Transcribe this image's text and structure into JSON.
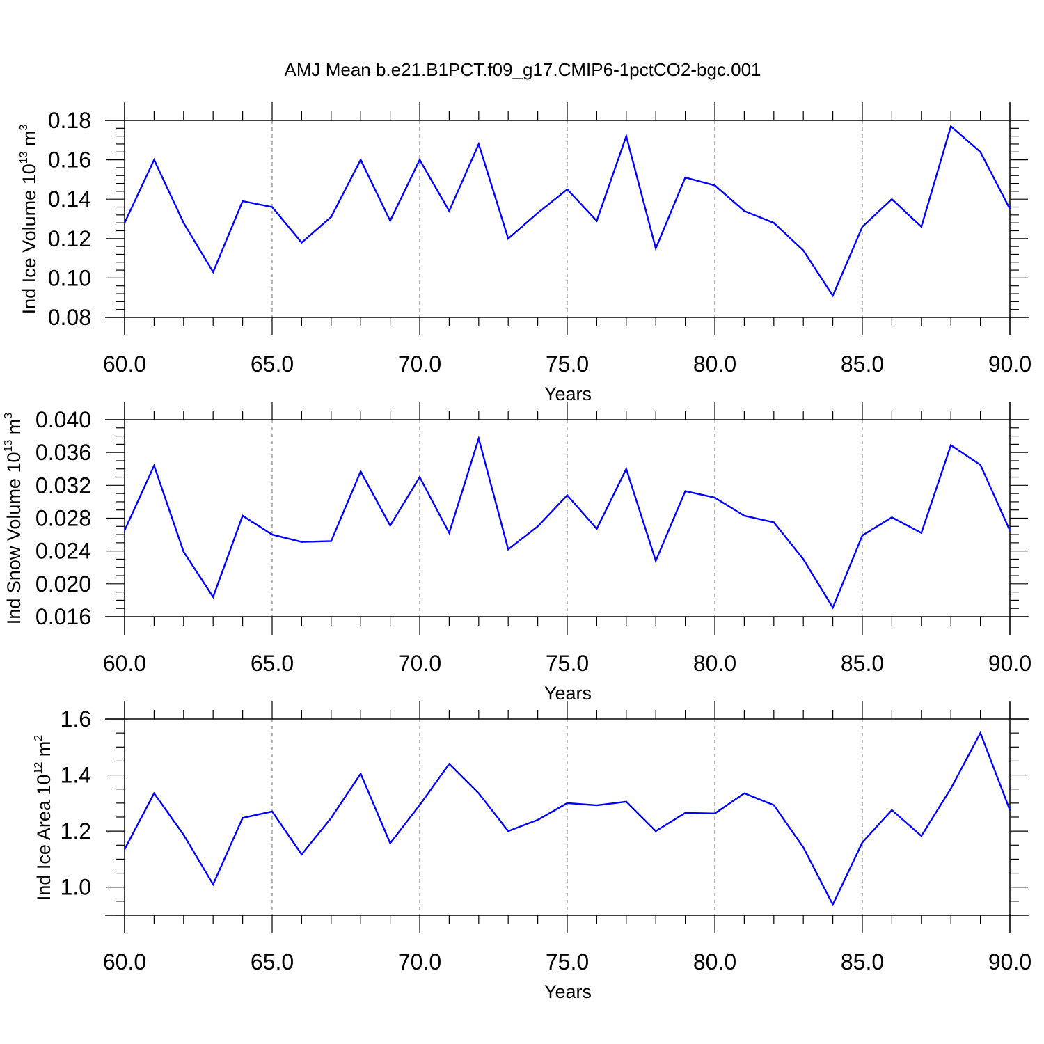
{
  "figure": {
    "title": "AMJ Mean b.e21.B1PCT.f09_g17.CMIP6-1pctCO2-bgc.001"
  },
  "chart_data": [
    {
      "type": "line",
      "xlabel": "Years",
      "ylabel": {
        "text": "Ind Ice Volume 10",
        "exp": "13",
        "unit": " m",
        "unit_exp": "3"
      },
      "xlim": [
        60,
        90
      ],
      "ylim": [
        0.08,
        0.18
      ],
      "xticks": [
        60,
        65,
        70,
        75,
        80,
        85,
        90
      ],
      "xtick_labels": [
        "60.0",
        "65.0",
        "70.0",
        "75.0",
        "80.0",
        "85.0",
        "90.0"
      ],
      "yticks": [
        0.08,
        0.1,
        0.12,
        0.14,
        0.16,
        0.18
      ],
      "ytick_labels": [
        "0.08",
        "0.10",
        "0.12",
        "0.14",
        "0.16",
        "0.18"
      ],
      "grid": "vertical-dashed",
      "color": "#0000ff",
      "x": [
        60,
        61,
        62,
        63,
        64,
        65,
        66,
        67,
        68,
        69,
        70,
        71,
        72,
        73,
        74,
        75,
        76,
        77,
        78,
        79,
        80,
        81,
        82,
        83,
        84,
        85,
        86,
        87,
        88,
        89,
        90
      ],
      "y": [
        0.128,
        0.16,
        0.128,
        0.103,
        0.139,
        0.136,
        0.118,
        0.131,
        0.16,
        0.129,
        0.16,
        0.134,
        0.168,
        0.12,
        0.133,
        0.145,
        0.129,
        0.172,
        0.115,
        0.151,
        0.147,
        0.134,
        0.128,
        0.114,
        0.091,
        0.126,
        0.14,
        0.126,
        0.177,
        0.164,
        0.135
      ]
    },
    {
      "type": "line",
      "xlabel": "Years",
      "ylabel": {
        "text": "Ind Snow Volume 10",
        "exp": "13",
        "unit": " m",
        "unit_exp": "3"
      },
      "xlim": [
        60,
        90
      ],
      "ylim": [
        0.016,
        0.04
      ],
      "xticks": [
        60,
        65,
        70,
        75,
        80,
        85,
        90
      ],
      "xtick_labels": [
        "60.0",
        "65.0",
        "70.0",
        "75.0",
        "80.0",
        "85.0",
        "90.0"
      ],
      "yticks": [
        0.016,
        0.02,
        0.024,
        0.028,
        0.032,
        0.036,
        0.04
      ],
      "ytick_labels": [
        "0.016",
        "0.020",
        "0.024",
        "0.028",
        "0.032",
        "0.036",
        "0.040"
      ],
      "grid": "vertical-dashed",
      "color": "#0000ff",
      "x": [
        60,
        61,
        62,
        63,
        64,
        65,
        66,
        67,
        68,
        69,
        70,
        71,
        72,
        73,
        74,
        75,
        76,
        77,
        78,
        79,
        80,
        81,
        82,
        83,
        84,
        85,
        86,
        87,
        88,
        89,
        90
      ],
      "y": [
        0.0265,
        0.0344,
        0.0239,
        0.0184,
        0.0283,
        0.026,
        0.0251,
        0.0252,
        0.0337,
        0.0271,
        0.033,
        0.0262,
        0.0377,
        0.0242,
        0.027,
        0.0308,
        0.0267,
        0.034,
        0.0228,
        0.0313,
        0.0305,
        0.0283,
        0.0275,
        0.023,
        0.0171,
        0.0259,
        0.0281,
        0.0262,
        0.0369,
        0.0345,
        0.0265
      ]
    },
    {
      "type": "line",
      "xlabel": "Years",
      "ylabel": {
        "text": "Ind Ice Area 10",
        "exp": "12",
        "unit": " m",
        "unit_exp": "2"
      },
      "xlim": [
        60,
        90
      ],
      "ylim": [
        0.9,
        1.6
      ],
      "xticks": [
        60,
        65,
        70,
        75,
        80,
        85,
        90
      ],
      "xtick_labels": [
        "60.0",
        "65.0",
        "70.0",
        "75.0",
        "80.0",
        "85.0",
        "90.0"
      ],
      "yticks": [
        1.0,
        1.2,
        1.4,
        1.6
      ],
      "ytick_labels": [
        "1.0",
        "1.2",
        "1.4",
        "1.6"
      ],
      "grid": "vertical-dashed",
      "color": "#0000ff",
      "x": [
        60,
        61,
        62,
        63,
        64,
        65,
        66,
        67,
        68,
        69,
        70,
        71,
        72,
        73,
        74,
        75,
        76,
        77,
        78,
        79,
        80,
        81,
        82,
        83,
        84,
        85,
        86,
        87,
        88,
        89,
        90
      ],
      "y": [
        1.135,
        1.335,
        1.187,
        1.01,
        1.247,
        1.27,
        1.117,
        1.247,
        1.405,
        1.157,
        1.293,
        1.44,
        1.335,
        1.2,
        1.24,
        1.3,
        1.292,
        1.305,
        1.2,
        1.265,
        1.263,
        1.335,
        1.293,
        1.142,
        0.938,
        1.16,
        1.275,
        1.183,
        1.352,
        1.55,
        1.275
      ]
    }
  ]
}
